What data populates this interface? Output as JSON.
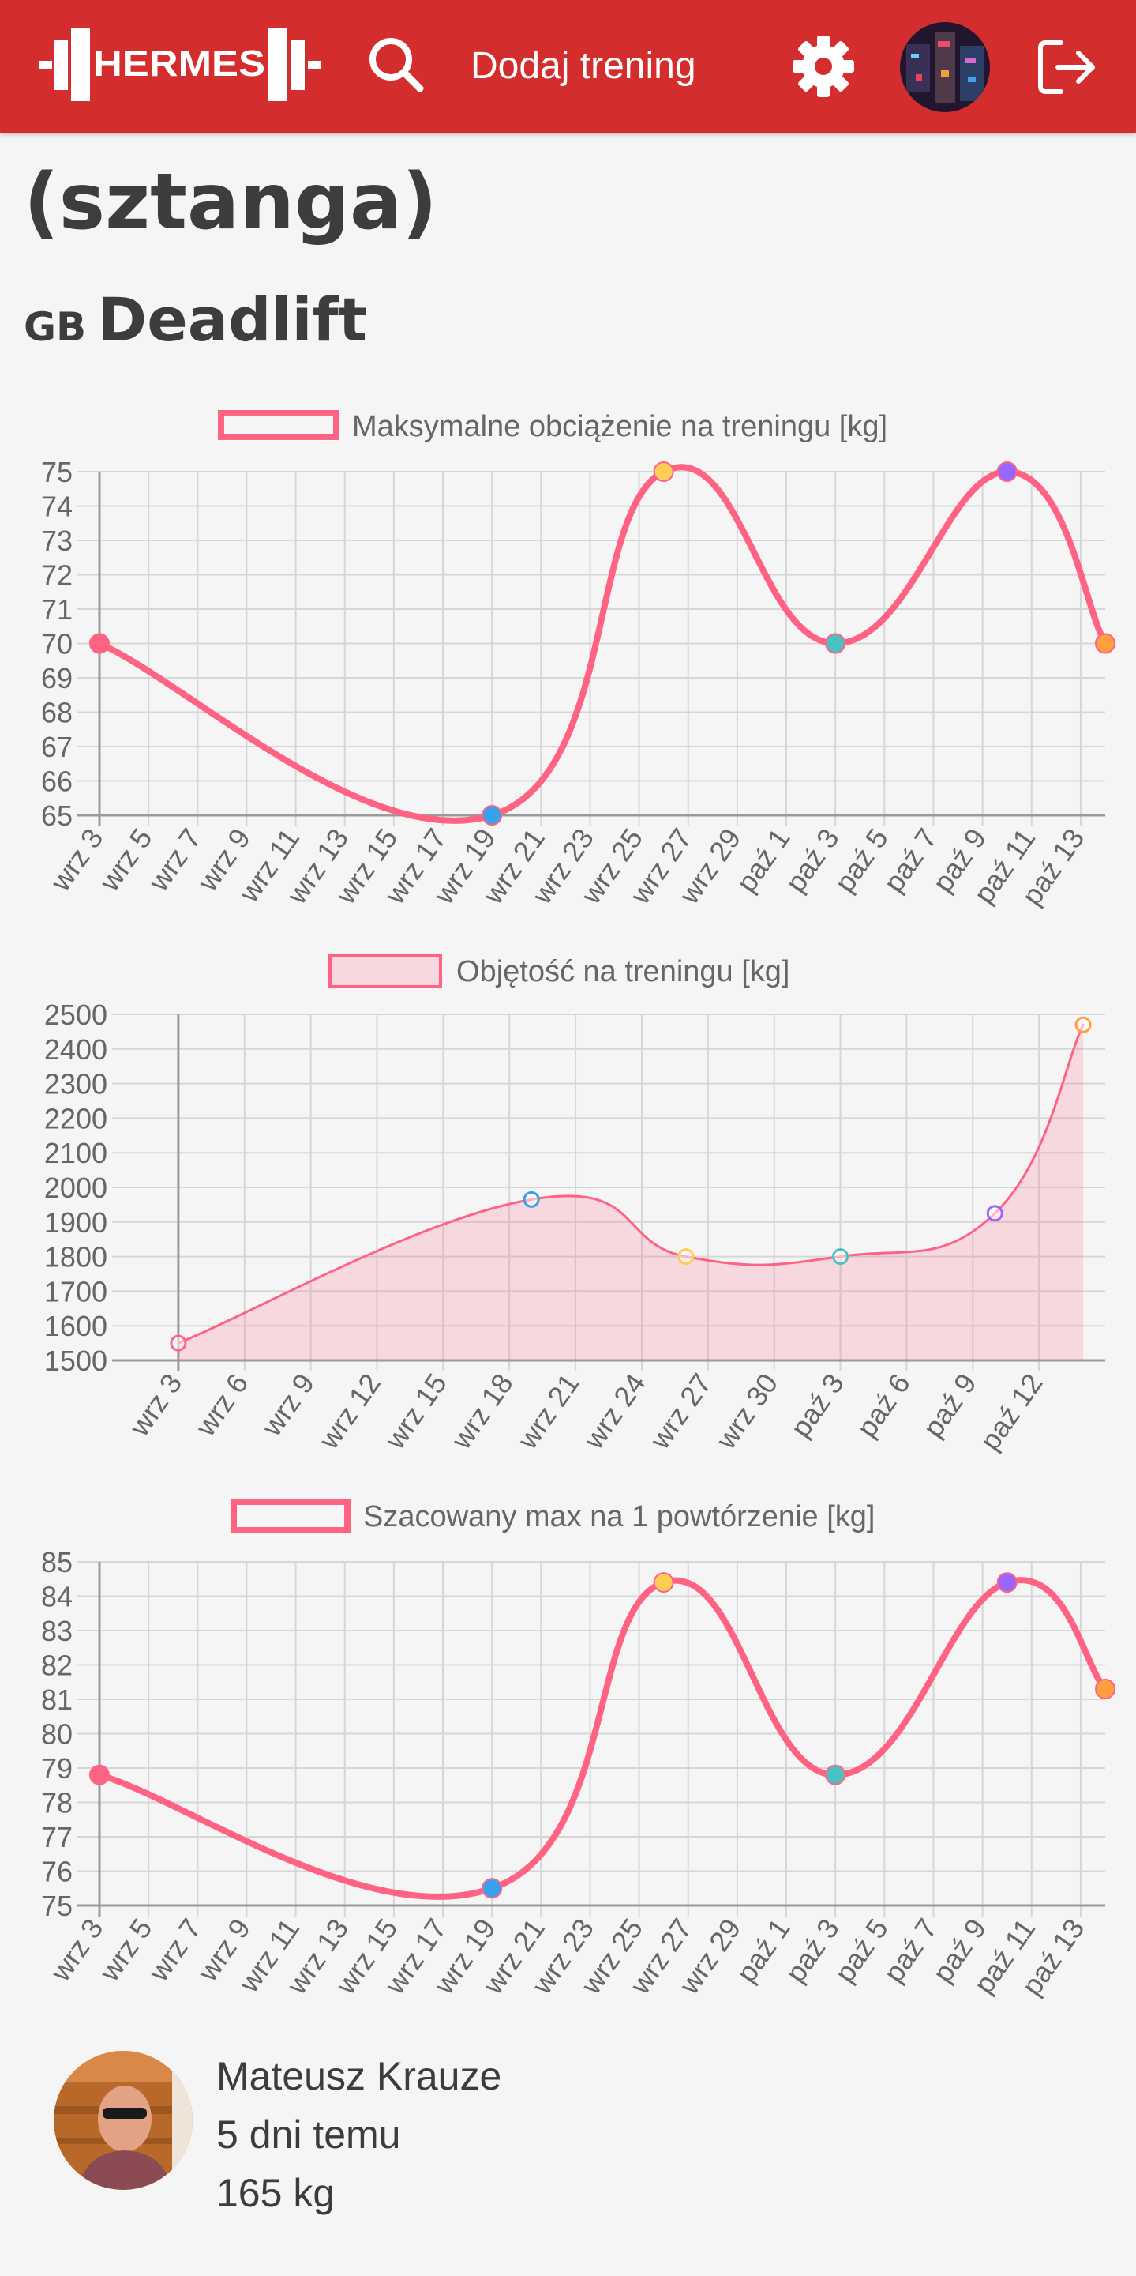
{
  "navbar": {
    "brand": "HERMES",
    "add_training": "Dodaj trening",
    "icons": [
      "barbell-logo",
      "search-icon",
      "gear-icon",
      "user-avatar",
      "logout-icon"
    ]
  },
  "page": {
    "title": "(sztanga)",
    "exercise_prefix": "GB",
    "exercise_name": "Deadlift"
  },
  "colors": {
    "navbar": "#d42d2d",
    "line": "#ff6384",
    "fill": "rgba(255,99,132,0.2)",
    "points": [
      "#ff6384",
      "#36a2eb",
      "#ffcd56",
      "#4bc0c0",
      "#9966ff",
      "#ff9f40"
    ]
  },
  "chart_data": [
    {
      "type": "line",
      "legend": "Maksymalne obciążenie na treningu [kg]",
      "x": [
        "wrz 3",
        "wrz 19",
        "wrz 26",
        "paź 3",
        "paź 10",
        "paź 14"
      ],
      "values": [
        70,
        65,
        75,
        70,
        75,
        70
      ],
      "x_ticks": [
        "wrz 3",
        "wrz 5",
        "wrz 7",
        "wrz 9",
        "wrz 11",
        "wrz 13",
        "wrz 15",
        "wrz 17",
        "wrz 19",
        "wrz 21",
        "wrz 23",
        "wrz 25",
        "wrz 27",
        "wrz 29",
        "paź 1",
        "paź 3",
        "paź 5",
        "paź 7",
        "paź 9",
        "paź 11",
        "paź 13"
      ],
      "y_ticks": [
        65,
        66,
        67,
        68,
        69,
        70,
        71,
        72,
        73,
        74,
        75
      ],
      "ylim": [
        65,
        75
      ],
      "fill": false,
      "grid": true,
      "legend_position": "top"
    },
    {
      "type": "area",
      "legend": "Objętość na treningu [kg]",
      "x": [
        "wrz 3",
        "wrz 19",
        "wrz 26",
        "paź 3",
        "paź 10",
        "paź 14"
      ],
      "values": [
        1550,
        1965,
        1800,
        1800,
        1925,
        2470
      ],
      "x_ticks": [
        "wrz 3",
        "wrz 6",
        "wrz 9",
        "wrz 12",
        "wrz 15",
        "wrz 18",
        "wrz 21",
        "wrz 24",
        "wrz 27",
        "wrz 30",
        "paź 3",
        "paź 6",
        "paź 9",
        "paź 12"
      ],
      "y_ticks": [
        1500,
        1600,
        1700,
        1800,
        1900,
        2000,
        2100,
        2200,
        2300,
        2400,
        2500
      ],
      "ylim": [
        1500,
        2500
      ],
      "fill": true,
      "grid": true,
      "legend_position": "top"
    },
    {
      "type": "line",
      "legend": "Szacowany max na 1 powtórzenie [kg]",
      "x": [
        "wrz 3",
        "wrz 19",
        "wrz 26",
        "paź 3",
        "paź 10",
        "paź 14"
      ],
      "values": [
        78.8,
        75.5,
        84.4,
        78.8,
        84.4,
        81.3
      ],
      "x_ticks": [
        "wrz 3",
        "wrz 5",
        "wrz 7",
        "wrz 9",
        "wrz 11",
        "wrz 13",
        "wrz 15",
        "wrz 17",
        "wrz 19",
        "wrz 21",
        "wrz 23",
        "wrz 25",
        "wrz 27",
        "wrz 29",
        "paź 1",
        "paź 3",
        "paź 5",
        "paź 7",
        "paź 9",
        "paź 11",
        "paź 13"
      ],
      "y_ticks": [
        75,
        76,
        77,
        78,
        79,
        80,
        81,
        82,
        83,
        84,
        85
      ],
      "ylim": [
        75,
        85
      ],
      "fill": false,
      "grid": true,
      "legend_position": "top"
    }
  ],
  "user": {
    "name": "Mateusz Krauze",
    "when": "5 dni temu",
    "weight": "165 kg"
  }
}
